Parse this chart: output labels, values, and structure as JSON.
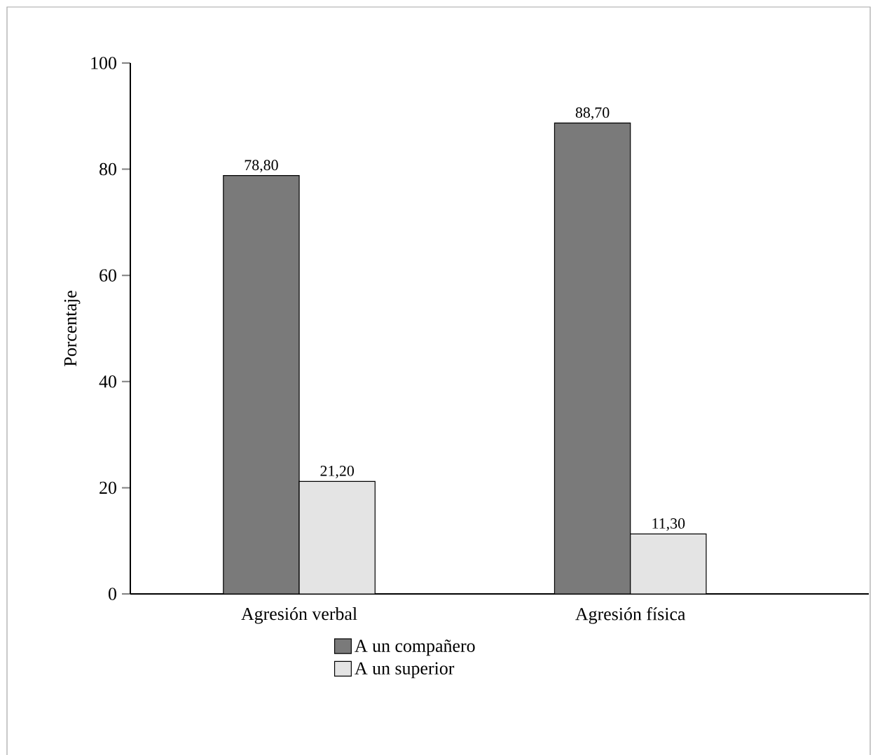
{
  "chart_data": {
    "type": "bar",
    "ylabel": "Porcentaje",
    "categories": [
      "Agresión verbal",
      "Agresión física"
    ],
    "series": [
      {
        "name": "A un compañero",
        "color": "#7a7a7a",
        "values": [
          78.8,
          88.7
        ],
        "value_labels": [
          "78,80",
          "88,70"
        ]
      },
      {
        "name": "A un superior",
        "color": "#e4e4e4",
        "values": [
          21.2,
          11.3
        ],
        "value_labels": [
          "21,20",
          "11,30"
        ]
      }
    ],
    "ylim": [
      0,
      100
    ],
    "yticks": [
      0,
      20,
      40,
      60,
      80,
      100
    ],
    "grid": false,
    "legend": "bottom"
  }
}
